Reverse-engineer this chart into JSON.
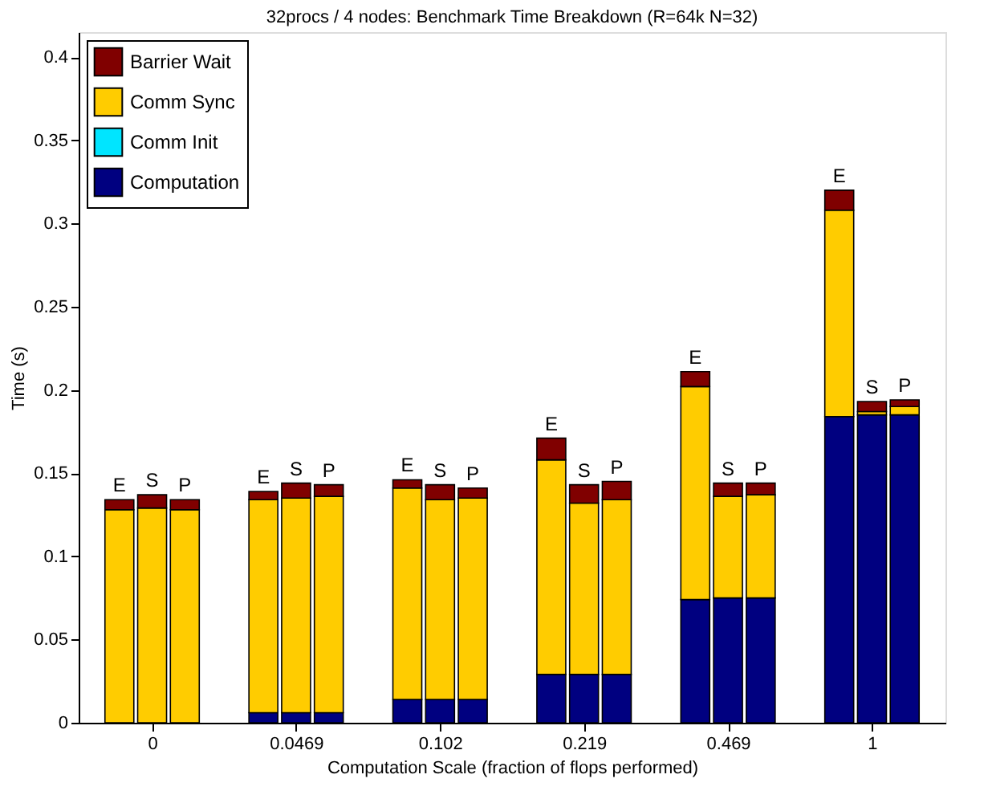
{
  "chart_data": {
    "type": "bar",
    "stacked": true,
    "title": "32procs / 4 nodes: Benchmark Time Breakdown (R=64k N=32)",
    "xlabel": "Computation Scale (fraction of flops performed)",
    "ylabel": "Time (s)",
    "categories": [
      null,
      "0",
      null,
      null,
      "0.0469",
      null,
      null,
      "0.102",
      null,
      null,
      "0.219",
      null,
      null,
      "0.469",
      null,
      null,
      "1",
      null
    ],
    "series": [
      {
        "name": "Computation",
        "color": "#000080",
        "values": [
          0,
          0,
          0,
          0.006,
          0.006,
          0.006,
          0.014,
          0.014,
          0.014,
          0.029,
          0.029,
          0.029,
          0.074,
          0.075,
          0.075,
          0.184,
          0.185,
          0.185
        ]
      },
      {
        "name": "Comm Init",
        "color": "#00e5ff",
        "values": [
          0,
          0,
          0,
          0,
          0,
          0,
          0,
          0,
          0,
          0,
          0,
          0,
          0,
          0,
          0,
          0,
          0,
          0
        ]
      },
      {
        "name": "Comm Sync",
        "color": "#ffcc00",
        "values": [
          0.128,
          0.129,
          0.128,
          0.128,
          0.129,
          0.13,
          0.127,
          0.12,
          0.121,
          0.129,
          0.103,
          0.105,
          0.128,
          0.061,
          0.062,
          0.124,
          0.002,
          0.005
        ]
      },
      {
        "name": "Barrier Wait",
        "color": "#800000",
        "values": [
          0.006,
          0.008,
          0.006,
          0.005,
          0.009,
          0.007,
          0.005,
          0.009,
          0.006,
          0.013,
          0.011,
          0.011,
          0.009,
          0.008,
          0.007,
          0.012,
          0.006,
          0.004
        ]
      }
    ],
    "value_labels": [
      "E",
      "S",
      "P",
      "E",
      "S",
      "P",
      "E",
      "S",
      "P",
      "E",
      "S",
      "P",
      "E",
      "S",
      "P",
      "E",
      "S",
      "P"
    ],
    "ylim": [
      0,
      0.415
    ],
    "yticks": [
      0,
      0.05,
      0.1,
      0.15,
      0.2,
      0.25,
      0.3,
      0.35,
      0.4
    ],
    "grid": false,
    "legend": "top left"
  }
}
